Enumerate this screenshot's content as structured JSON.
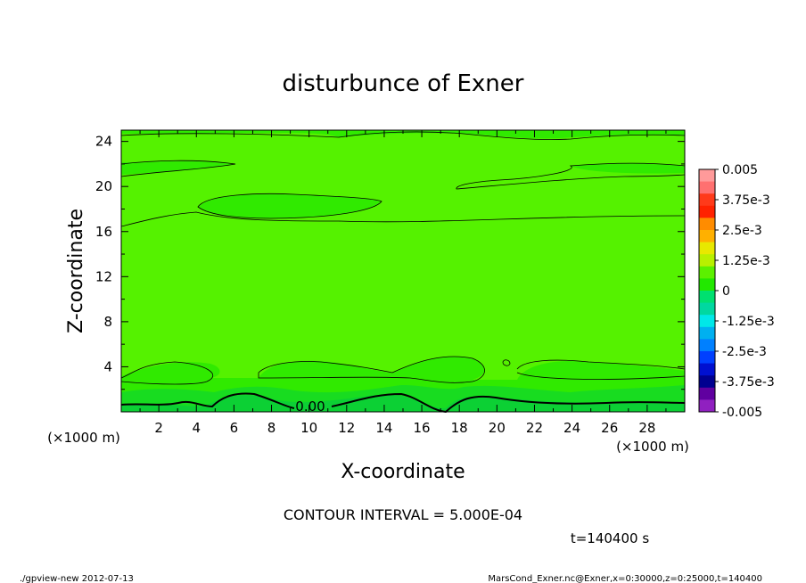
{
  "chart_data": {
    "type": "contour",
    "title": "disturbunce of Exner",
    "xlabel": "X-coordinate",
    "ylabel": "Z-coordinate",
    "x_unit_label": "(×1000 m)",
    "y_unit_label": "(×1000 m)",
    "xlim": [
      0,
      30
    ],
    "ylim": [
      0,
      25
    ],
    "x_ticks": [
      "2",
      "4",
      "6",
      "8",
      "10",
      "12",
      "14",
      "16",
      "18",
      "20",
      "22",
      "24",
      "26",
      "28"
    ],
    "y_ticks": [
      "4",
      "8",
      "12",
      "16",
      "20",
      "24"
    ],
    "contour_label": "0.00",
    "contour_interval": "CONTOUR INTERVAL = 5.000E-04",
    "time_label": "t=140400 s",
    "colorbar": {
      "labels": [
        "0.005",
        "3.75e-3",
        "2.5e-3",
        "1.25e-3",
        "0",
        "-1.25e-3",
        "-2.5e-3",
        "-3.75e-3",
        "-0.005"
      ],
      "colors": [
        "#ff9a9a",
        "#ff7070",
        "#ff3a1a",
        "#ff2200",
        "#ff8c00",
        "#ffb000",
        "#e8e800",
        "#b8f000",
        "#5cf000",
        "#22e800",
        "#00e070",
        "#00d8a0",
        "#00e8e8",
        "#00b0f0",
        "#0080ff",
        "#0040ff",
        "#0010d0",
        "#000090",
        "#6000a0",
        "#9020c0"
      ]
    },
    "fill_colors": {
      "light": "#55f200",
      "mid": "#22e400",
      "dark": "#12d824",
      "darker": "#08cc30"
    }
  },
  "footer": {
    "left": "./gpview-new  2012-07-13",
    "right": "MarsCond_Exner.nc@Exner,x=0:30000,z=0:25000,t=140400"
  }
}
